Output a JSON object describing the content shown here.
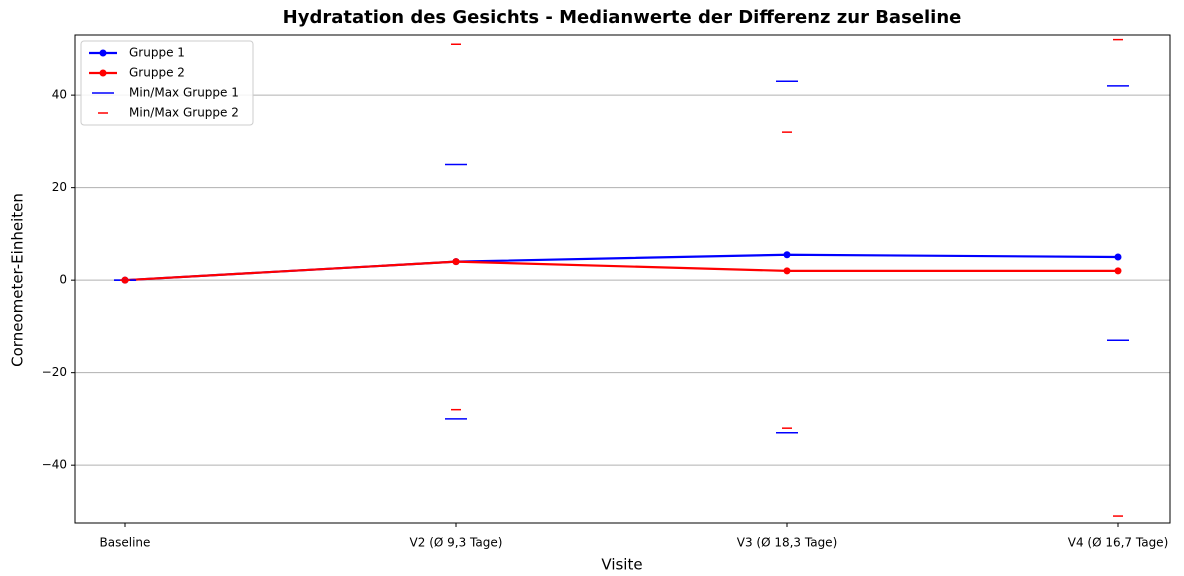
{
  "chart_data": {
    "type": "line",
    "title": "Hydratation des Gesichts - Medianwerte der Differenz zur Baseline",
    "xlabel": "Visite",
    "ylabel": "Corneometer-Einheiten",
    "categories": [
      "Baseline",
      "V2 (Ø 9,3 Tage)",
      "V3 (Ø 18,3 Tage)",
      "V4 (Ø 16,7 Tage)"
    ],
    "series": [
      {
        "name": "Gruppe 1",
        "color": "#0000ff",
        "values": [
          0,
          4,
          5.5,
          5
        ]
      },
      {
        "name": "Gruppe 2",
        "color": "#ff0000",
        "values": [
          0,
          4,
          2,
          2
        ]
      }
    ],
    "range_series": [
      {
        "name": "Min/Max Gruppe 1",
        "color": "#0000ff",
        "min": [
          0,
          -30,
          -33,
          -13
        ],
        "max": [
          0,
          25,
          43,
          42
        ]
      },
      {
        "name": "Min/Max Gruppe 2",
        "color": "#ff0000",
        "min": [
          0,
          -28,
          -32,
          -51
        ],
        "max": [
          0,
          51,
          32,
          52
        ]
      }
    ],
    "ylim": [
      -52.5,
      53
    ],
    "yticks": [
      {
        "value": -40,
        "label": "−40"
      },
      {
        "value": -20,
        "label": "−20"
      },
      0,
      20,
      40
    ],
    "grid": true,
    "legend": "upper left"
  }
}
